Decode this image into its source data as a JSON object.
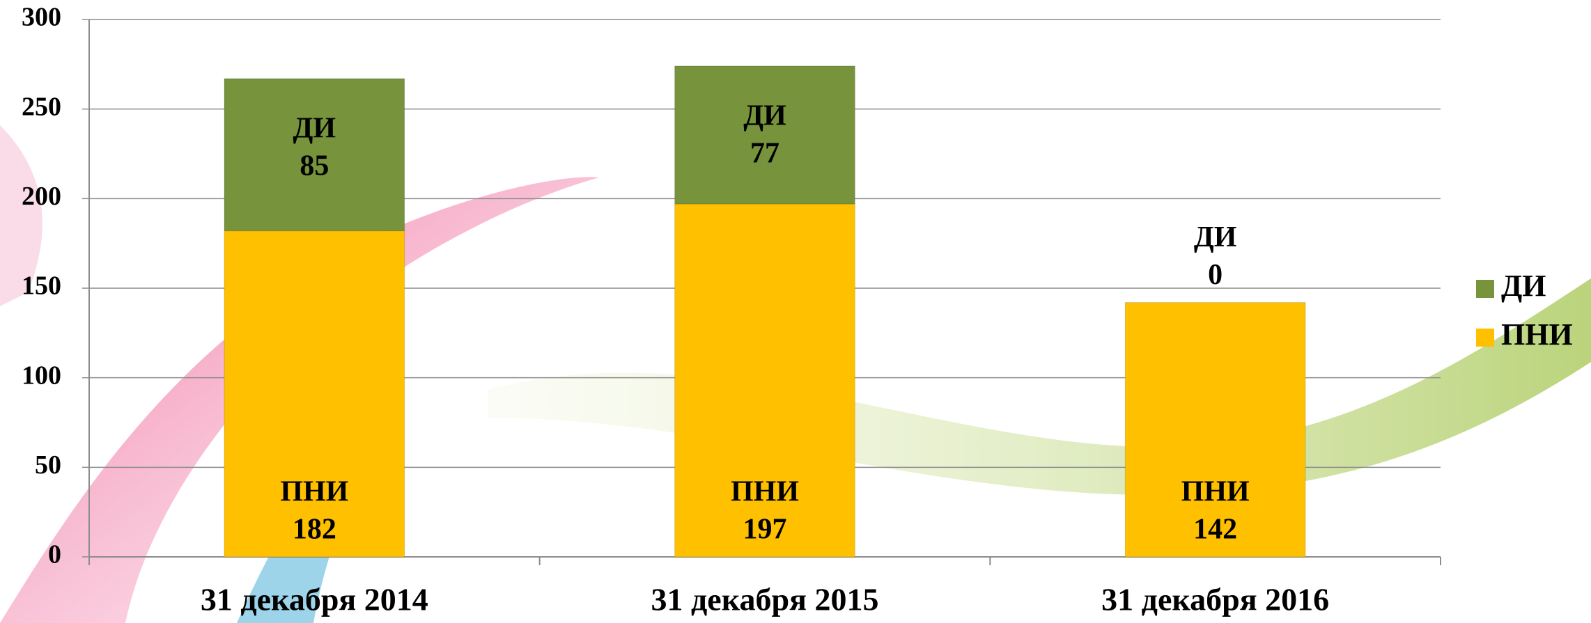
{
  "chart_data": {
    "type": "stacked_bar",
    "categories": [
      "31 декабря 2014",
      "31 декабря 2015",
      "31 декабря 2016"
    ],
    "series": [
      {
        "name": "ПНИ",
        "color": "#ffc000",
        "values": [
          182,
          197,
          142
        ]
      },
      {
        "name": "ДИ",
        "color": "#77933c",
        "values": [
          85,
          77,
          0
        ]
      }
    ],
    "ylim": [
      0,
      300
    ],
    "yticks": [
      0,
      50,
      100,
      150,
      200,
      250,
      300
    ],
    "grid": true,
    "legend": "right"
  }
}
